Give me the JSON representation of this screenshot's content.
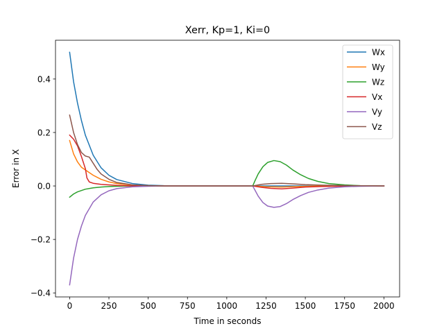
{
  "chart_data": {
    "type": "line",
    "title": "Xerr, Kp=1, Ki=0",
    "xlabel": "Time in seconds",
    "ylabel": "Error in X",
    "xlim": [
      -90,
      2100
    ],
    "ylim": [
      -0.415,
      0.545
    ],
    "xticks": [
      0,
      250,
      500,
      750,
      1000,
      1250,
      1500,
      1750,
      2000
    ],
    "xtick_labels": [
      "0",
      "250",
      "500",
      "750",
      "1000",
      "1250",
      "1500",
      "1750",
      "2000"
    ],
    "yticks": [
      -0.4,
      -0.2,
      0.0,
      0.2,
      0.4
    ],
    "ytick_labels": [
      "−0.4",
      "−0.2",
      "0.0",
      "0.2",
      "0.4"
    ],
    "grid": false,
    "legend_position": "top-right",
    "series": [
      {
        "name": "Wx",
        "color": "#1f77b4",
        "x": [
          0,
          25,
          50,
          75,
          100,
          150,
          200,
          250,
          300,
          400,
          500,
          600,
          800,
          1000,
          1165,
          1200,
          1300,
          1400,
          1600,
          1800,
          2000
        ],
        "y": [
          0.5,
          0.39,
          0.31,
          0.245,
          0.19,
          0.115,
          0.068,
          0.04,
          0.024,
          0.009,
          0.003,
          0.001,
          0.0,
          0.0,
          0.0,
          0.0,
          0.0,
          0.0,
          0.0,
          0.0,
          0.0
        ]
      },
      {
        "name": "Wy",
        "color": "#ff7f0e",
        "x": [
          0,
          25,
          50,
          75,
          100,
          125,
          150,
          200,
          250,
          300,
          400,
          500,
          600,
          800,
          1000,
          1165,
          1250,
          1350,
          1450,
          1600,
          1800,
          2000
        ],
        "y": [
          0.17,
          0.12,
          0.09,
          0.07,
          0.06,
          0.05,
          0.04,
          0.025,
          0.015,
          0.009,
          0.003,
          0.001,
          0.0,
          0.0,
          0.0,
          0.0,
          -0.003,
          -0.004,
          -0.002,
          0.0,
          0.0,
          0.0
        ]
      },
      {
        "name": "Wz",
        "color": "#2ca02c",
        "x": [
          0,
          25,
          50,
          100,
          150,
          200,
          250,
          300,
          400,
          500,
          600,
          800,
          1000,
          1165,
          1180,
          1200,
          1230,
          1260,
          1300,
          1340,
          1380,
          1420,
          1470,
          1520,
          1580,
          1650,
          1750,
          1850,
          2000
        ],
        "y": [
          -0.042,
          -0.03,
          -0.022,
          -0.012,
          -0.007,
          -0.004,
          -0.002,
          -0.001,
          0.0,
          0.0,
          0.0,
          0.0,
          0.0,
          0.0,
          0.02,
          0.045,
          0.072,
          0.088,
          0.095,
          0.091,
          0.078,
          0.06,
          0.042,
          0.028,
          0.017,
          0.009,
          0.004,
          0.001,
          0.0
        ]
      },
      {
        "name": "Vx",
        "color": "#d62728",
        "x": [
          0,
          25,
          50,
          75,
          100,
          110,
          125,
          150,
          200,
          250,
          300,
          400,
          500,
          600,
          800,
          1000,
          1165,
          1220,
          1280,
          1350,
          1420,
          1500,
          1600,
          1800,
          2000
        ],
        "y": [
          0.19,
          0.175,
          0.15,
          0.11,
          0.065,
          0.03,
          0.015,
          0.01,
          0.006,
          0.004,
          0.002,
          0.0,
          0.0,
          0.0,
          0.0,
          0.0,
          0.0,
          -0.005,
          -0.009,
          -0.011,
          -0.008,
          -0.004,
          -0.002,
          0.0,
          0.0
        ]
      },
      {
        "name": "Vy",
        "color": "#9467bd",
        "x": [
          0,
          25,
          50,
          75,
          100,
          150,
          200,
          250,
          300,
          400,
          500,
          600,
          800,
          1000,
          1165,
          1180,
          1200,
          1230,
          1260,
          1300,
          1340,
          1380,
          1420,
          1470,
          1520,
          1580,
          1650,
          1750,
          1850,
          2000
        ],
        "y": [
          -0.37,
          -0.27,
          -0.2,
          -0.15,
          -0.11,
          -0.06,
          -0.033,
          -0.018,
          -0.01,
          -0.003,
          -0.001,
          0.0,
          0.0,
          0.0,
          0.0,
          -0.016,
          -0.038,
          -0.062,
          -0.075,
          -0.08,
          -0.077,
          -0.066,
          -0.051,
          -0.036,
          -0.024,
          -0.015,
          -0.008,
          -0.003,
          -0.001,
          0.0
        ]
      },
      {
        "name": "Vz",
        "color": "#8c564b",
        "x": [
          0,
          25,
          50,
          75,
          100,
          125,
          150,
          175,
          200,
          250,
          300,
          400,
          500,
          600,
          800,
          1000,
          1165,
          1220,
          1280,
          1350,
          1420,
          1500,
          1600,
          1800,
          2000
        ],
        "y": [
          0.265,
          0.2,
          0.155,
          0.125,
          0.112,
          0.108,
          0.085,
          0.062,
          0.045,
          0.025,
          0.013,
          0.004,
          0.001,
          0.0,
          0.0,
          0.0,
          0.0,
          0.006,
          0.009,
          0.01,
          0.008,
          0.005,
          0.003,
          0.001,
          0.0
        ]
      }
    ]
  }
}
